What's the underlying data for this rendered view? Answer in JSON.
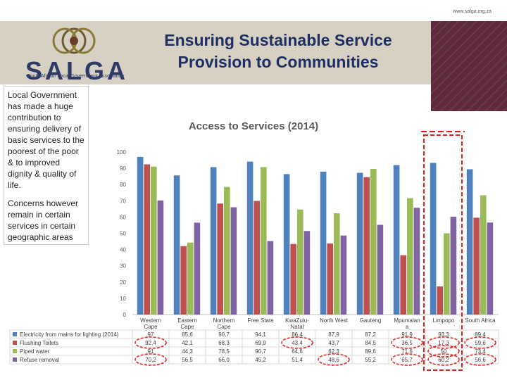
{
  "header": {
    "url": "www.salga.org.za",
    "title_line1": "Ensuring Sustainable Service",
    "title_line2": "Provision to Communities",
    "logo_text": "SALGA",
    "logo_subtitle": "South African Local Government Association"
  },
  "body_text": {
    "paragraph1": "Local Government has made a huge contribution to ensuring delivery of basic services to the poorest of the poor & to improved dignity & quality of life.",
    "paragraph2": "Concerns however remain in certain services in certain geographic areas"
  },
  "colors": {
    "electricity": "#4f81bd",
    "toilets": "#c0504d",
    "water": "#9bbb59",
    "refuse": "#8064a2",
    "highlight": "#e0201a",
    "brand": "#2f3a67"
  },
  "chart_data": {
    "type": "bar",
    "title": "Access to Services (2014)",
    "ylim": [
      0,
      100
    ],
    "yticks": [
      0,
      10,
      20,
      30,
      40,
      50,
      60,
      70,
      80,
      90,
      100
    ],
    "grid": false,
    "legend": "table-bottom",
    "categories": [
      [
        "Western",
        "Cape"
      ],
      [
        "Eastern",
        "Cape"
      ],
      [
        "Northern",
        "Cape"
      ],
      [
        "Free State"
      ],
      [
        "KwaZulu-",
        "Natal"
      ],
      [
        "North West"
      ],
      [
        "Gauteng"
      ],
      [
        "Mpumalan",
        "a"
      ],
      [
        "Limpopo"
      ],
      [
        "South Africa"
      ]
    ],
    "series": [
      {
        "name": "Electricity from mains for lighting (2014)",
        "values": [
          97,
          85.6,
          90.7,
          94.1,
          86.4,
          87.9,
          87.2,
          91.9,
          93.3,
          89.4
        ],
        "labels": [
          "97",
          "85,6",
          "90,7",
          "94,1",
          "86,4",
          "87,9",
          "87,2",
          "91,9",
          "93,3",
          "89,4"
        ]
      },
      {
        "name": "Flushing Toilets",
        "values": [
          92.4,
          42.1,
          68.3,
          69.9,
          43.4,
          43.7,
          84.5,
          36.5,
          17.3,
          59.6
        ],
        "labels": [
          "92,4",
          "42,1",
          "68,3",
          "69,9",
          "43,4",
          "43,7",
          "84,5",
          "36,5",
          "17,3",
          "59,6"
        ]
      },
      {
        "name": "Piped water",
        "values": [
          91,
          44.3,
          78.5,
          90.7,
          64.6,
          62.3,
          89.6,
          71.6,
          50,
          73.4
        ],
        "labels": [
          "91",
          "44,3",
          "78,5",
          "90,7",
          "64,6",
          "62,3",
          "89,6",
          "71,6",
          "50",
          "73,4"
        ]
      },
      {
        "name": "Refuse removal",
        "values": [
          70.2,
          56.5,
          66,
          45.2,
          51.4,
          48.6,
          55.2,
          65.7,
          60.2,
          56.6
        ],
        "labels": [
          "70,2",
          "56,5",
          "66,0",
          "45,2",
          "51,4",
          "48,6",
          "55,2",
          "65,7",
          "60,2",
          "56,6"
        ]
      }
    ],
    "annotations": {
      "highlighted_category": "Limpopo",
      "circled_cells": [
        [
          1,
          0
        ],
        [
          3,
          0
        ],
        [
          1,
          4
        ],
        [
          3,
          5
        ],
        [
          1,
          7
        ],
        [
          3,
          7
        ],
        [
          1,
          8
        ],
        [
          2,
          8
        ],
        [
          3,
          8
        ],
        [
          1,
          9
        ],
        [
          3,
          9
        ]
      ]
    }
  }
}
